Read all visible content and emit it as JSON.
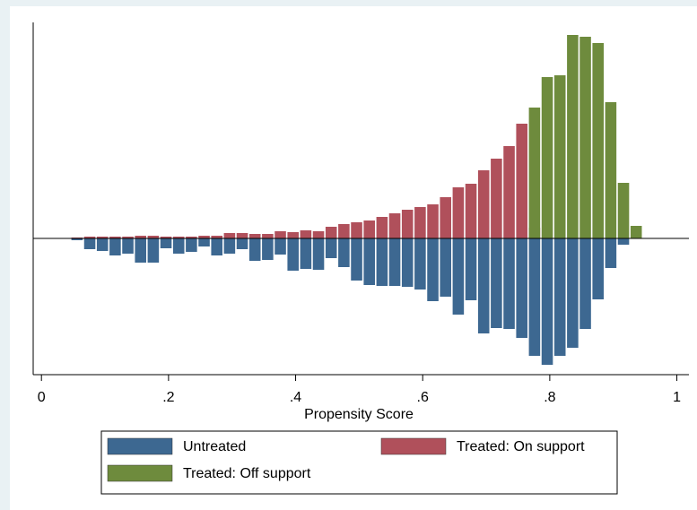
{
  "chart_data": {
    "type": "mirrored_histogram",
    "x_label": "Propensity Score",
    "bins": [
      0.046,
      0.066,
      0.086,
      0.106,
      0.126,
      0.146,
      0.166,
      0.186,
      0.206,
      0.226,
      0.246,
      0.266,
      0.286,
      0.306,
      0.326,
      0.346,
      0.366,
      0.386,
      0.406,
      0.426,
      0.446,
      0.466,
      0.486,
      0.506,
      0.526,
      0.546,
      0.566,
      0.586,
      0.606,
      0.626,
      0.646,
      0.666,
      0.686,
      0.706,
      0.726,
      0.746,
      0.766,
      0.786,
      0.806,
      0.826,
      0.846,
      0.866,
      0.886,
      0.906,
      0.926,
      0.946
    ],
    "series": [
      {
        "name": "Untreated",
        "color": "#3d6891",
        "values": [
          -2,
          -12,
          -14,
          -19,
          -17,
          -27,
          -27,
          -11,
          -17,
          -15,
          -9,
          -19,
          -17,
          -12,
          -25,
          -24,
          -18,
          -36,
          -34,
          -35,
          -22,
          -32,
          -47,
          -52,
          -53,
          -53,
          -54,
          -57,
          -70,
          -65,
          -85,
          -69,
          -106,
          -100,
          -101,
          -111,
          -131,
          -141,
          -131,
          -122,
          -101,
          -68,
          -33,
          -7,
          0
        ]
      },
      {
        "name": "Treated: On support",
        "color": "#b0505b",
        "values": [
          1,
          2,
          2,
          2,
          2,
          3,
          3,
          2,
          2,
          2,
          3,
          3,
          6,
          6,
          5,
          5,
          8,
          7,
          9,
          8,
          13,
          16,
          18,
          20,
          24,
          28,
          32,
          35,
          38,
          46,
          57,
          61,
          76,
          89,
          103,
          128,
          12,
          0,
          0,
          0,
          0,
          0,
          0,
          0,
          0
        ]
      },
      {
        "name": "Treated: Off support",
        "color": "#6e8b3d",
        "values": [
          0,
          0,
          0,
          0,
          0,
          0,
          0,
          0,
          0,
          0,
          0,
          0,
          0,
          0,
          0,
          0,
          0,
          0,
          0,
          0,
          0,
          0,
          0,
          0,
          0,
          0,
          0,
          0,
          0,
          0,
          0,
          0,
          0,
          0,
          0,
          0,
          146,
          180,
          182,
          227,
          225,
          218,
          152,
          62,
          14
        ]
      }
    ],
    "xlim": [
      -0.013,
      1.019
    ],
    "ylim": [
      -152,
      241
    ],
    "xticks": [
      0,
      {
        "value": 0.2,
        "label": ".2"
      },
      {
        "value": 0.4,
        "label": ".4"
      },
      {
        "value": 0.6,
        "label": ".6"
      },
      {
        "value": 0.8,
        "label": ".8"
      },
      1
    ]
  }
}
